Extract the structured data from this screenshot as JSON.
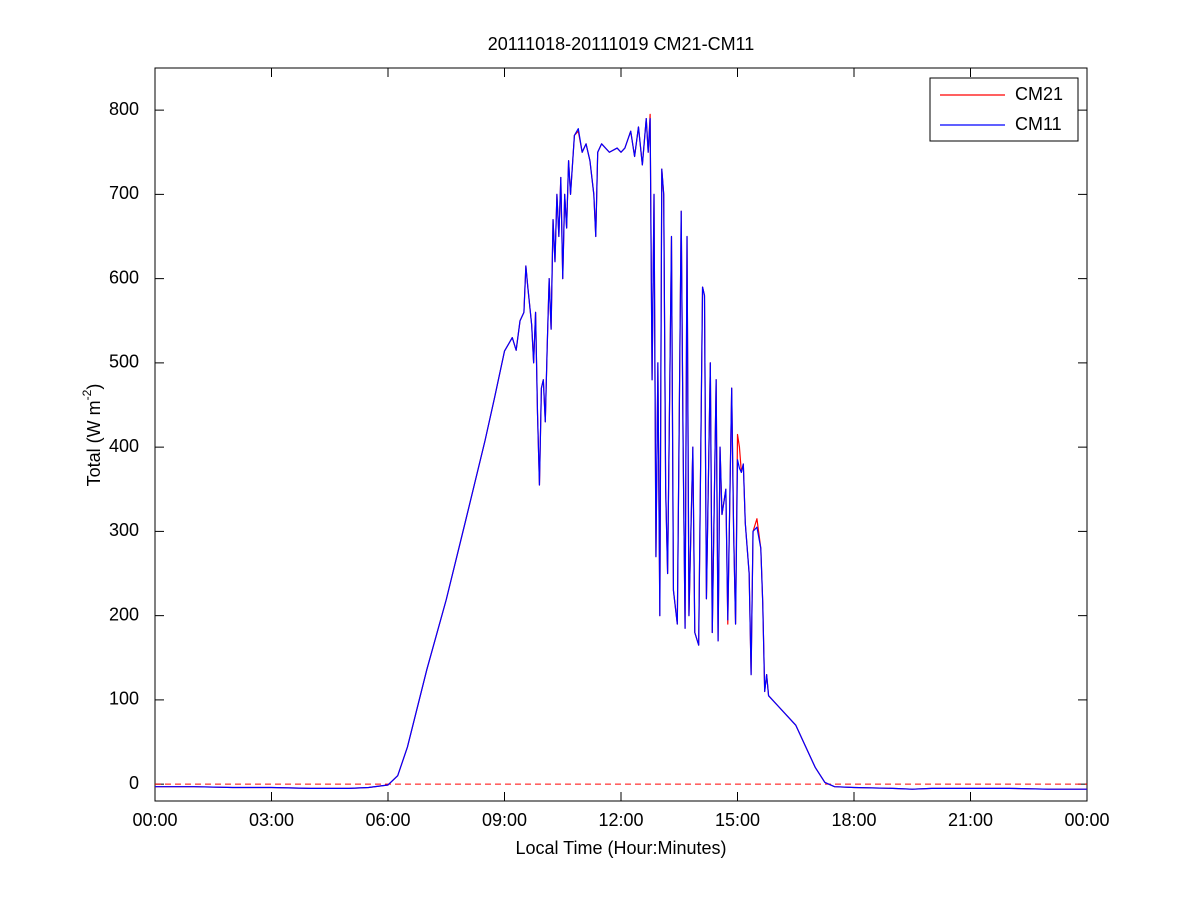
{
  "chart_data": {
    "type": "line",
    "title": "20111018-20111019 CM21-CM11",
    "xlabel": "Local Time (Hour:Minutes)",
    "ylabel": {
      "text": "Total (W m",
      "superscript": "-2",
      "suffix": ")"
    },
    "xlim": [
      0,
      24
    ],
    "xticks": [
      {
        "value": 0,
        "label": "00:00"
      },
      {
        "value": 3,
        "label": "03:00"
      },
      {
        "value": 6,
        "label": "06:00"
      },
      {
        "value": 9,
        "label": "09:00"
      },
      {
        "value": 12,
        "label": "12:00"
      },
      {
        "value": 15,
        "label": "15:00"
      },
      {
        "value": 18,
        "label": "18:00"
      },
      {
        "value": 21,
        "label": "21:00"
      },
      {
        "value": 24,
        "label": "00:00"
      }
    ],
    "ylim": [
      -20,
      850
    ],
    "yticks": [
      0,
      100,
      200,
      300,
      400,
      500,
      600,
      700,
      800
    ],
    "grid": false,
    "legend": "upper right",
    "reference_line": {
      "value": 0,
      "color": "#ff0000",
      "style": "dashed"
    },
    "x": [
      0,
      1,
      2,
      3,
      4,
      5,
      5.5,
      6,
      6.25,
      6.5,
      7,
      7.5,
      8,
      8.5,
      8.75,
      9,
      9.2,
      9.3,
      9.4,
      9.5,
      9.55,
      9.6,
      9.7,
      9.75,
      9.8,
      9.85,
      9.9,
      9.95,
      10,
      10.05,
      10.1,
      10.15,
      10.2,
      10.25,
      10.3,
      10.35,
      10.4,
      10.45,
      10.5,
      10.55,
      10.6,
      10.65,
      10.7,
      10.8,
      10.9,
      11,
      11.1,
      11.2,
      11.3,
      11.35,
      11.4,
      11.5,
      11.7,
      11.9,
      12,
      12.1,
      12.25,
      12.35,
      12.45,
      12.55,
      12.65,
      12.7,
      12.75,
      12.8,
      12.85,
      12.9,
      12.95,
      13,
      13.05,
      13.1,
      13.15,
      13.2,
      13.3,
      13.35,
      13.45,
      13.55,
      13.6,
      13.65,
      13.7,
      13.75,
      13.85,
      13.9,
      14,
      14.1,
      14.15,
      14.2,
      14.3,
      14.35,
      14.45,
      14.5,
      14.55,
      14.6,
      14.7,
      14.75,
      14.85,
      14.9,
      14.95,
      15,
      15.05,
      15.1,
      15.15,
      15.2,
      15.3,
      15.35,
      15.4,
      15.5,
      15.6,
      15.65,
      15.7,
      15.75,
      15.8,
      16,
      16.5,
      16.75,
      17,
      17.25,
      17.5,
      18,
      19,
      19.5,
      20,
      21,
      22,
      23,
      24
    ],
    "series": [
      {
        "name": "CM21",
        "color": "#ff0000",
        "values": [
          -3,
          -3,
          -4,
          -4,
          -5,
          -5,
          -4,
          -1,
          10,
          44,
          136,
          219,
          313,
          408,
          460,
          514,
          530,
          515,
          550,
          560,
          615,
          590,
          545,
          500,
          560,
          440,
          355,
          470,
          480,
          430,
          520,
          600,
          540,
          670,
          620,
          700,
          650,
          720,
          600,
          700,
          660,
          740,
          700,
          770,
          775,
          750,
          760,
          740,
          700,
          650,
          750,
          760,
          750,
          755,
          750,
          755,
          775,
          745,
          780,
          735,
          790,
          750,
          795,
          480,
          700,
          270,
          500,
          200,
          730,
          700,
          350,
          250,
          650,
          230,
          190,
          680,
          400,
          185,
          650,
          200,
          400,
          180,
          165,
          590,
          580,
          220,
          500,
          180,
          480,
          170,
          400,
          320,
          350,
          190,
          470,
          300,
          190,
          415,
          400,
          370,
          380,
          310,
          250,
          130,
          300,
          315,
          280,
          215,
          110,
          130,
          105,
          95,
          70,
          45,
          20,
          2,
          -3,
          -4,
          -5,
          -6,
          -5,
          -5,
          -5,
          -6,
          -6
        ]
      },
      {
        "name": "CM11",
        "color": "#0000ff",
        "values": [
          -3,
          -3,
          -4,
          -4,
          -5,
          -5,
          -4,
          -1,
          10,
          44,
          136,
          219,
          313,
          408,
          460,
          514,
          530,
          515,
          550,
          560,
          615,
          590,
          545,
          500,
          560,
          440,
          355,
          470,
          480,
          430,
          520,
          600,
          540,
          670,
          620,
          700,
          650,
          720,
          600,
          700,
          660,
          740,
          700,
          770,
          778,
          750,
          760,
          740,
          700,
          650,
          750,
          760,
          750,
          755,
          750,
          755,
          775,
          745,
          780,
          735,
          790,
          750,
          790,
          480,
          700,
          270,
          500,
          200,
          730,
          700,
          350,
          250,
          650,
          230,
          190,
          680,
          400,
          185,
          650,
          200,
          400,
          180,
          165,
          590,
          580,
          220,
          500,
          180,
          480,
          170,
          400,
          320,
          350,
          195,
          470,
          300,
          190,
          385,
          375,
          370,
          380,
          310,
          250,
          130,
          300,
          305,
          280,
          215,
          110,
          130,
          105,
          95,
          70,
          45,
          20,
          2,
          -3,
          -4,
          -5,
          -6,
          -5,
          -5,
          -5,
          -6,
          -6
        ]
      }
    ]
  }
}
